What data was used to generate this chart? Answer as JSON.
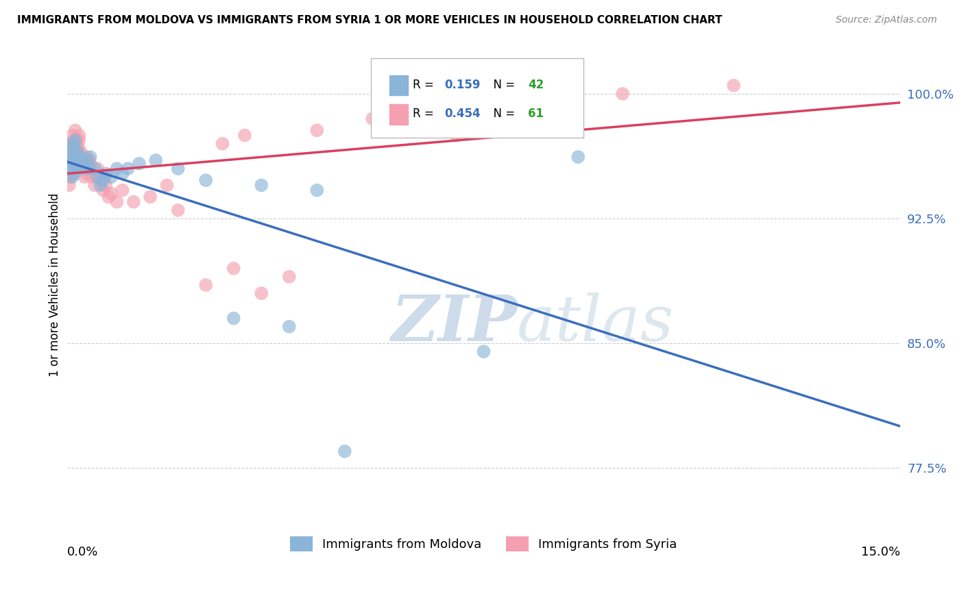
{
  "title": "IMMIGRANTS FROM MOLDOVA VS IMMIGRANTS FROM SYRIA 1 OR MORE VEHICLES IN HOUSEHOLD CORRELATION CHART",
  "source": "Source: ZipAtlas.com",
  "ylabel": "1 or more Vehicles in Household",
  "yticks": [
    77.5,
    85.0,
    92.5,
    100.0
  ],
  "ytick_labels": [
    "77.5%",
    "85.0%",
    "92.5%",
    "100.0%"
  ],
  "xlim": [
    0.0,
    15.0
  ],
  "ylim": [
    74.0,
    103.0
  ],
  "legend_blue_r": "0.159",
  "legend_blue_n": "42",
  "legend_pink_r": "0.454",
  "legend_pink_n": "61",
  "blue_color": "#8ab4d8",
  "pink_color": "#f4a0b0",
  "blue_line_color": "#3a6ebd",
  "pink_line_color": "#d94060",
  "watermark_color": "#dce8f0",
  "moldova_x": [
    0.05,
    0.07,
    0.08,
    0.09,
    0.1,
    0.1,
    0.12,
    0.13,
    0.15,
    0.17,
    0.18,
    0.2,
    0.22,
    0.25,
    0.28,
    0.3,
    0.35,
    0.4,
    0.42,
    0.5,
    0.55,
    0.6,
    0.65,
    0.7,
    0.8,
    0.9,
    1.0,
    1.1,
    1.3,
    1.6,
    2.0,
    2.5,
    3.0,
    3.5,
    4.0,
    4.5,
    5.0,
    7.5,
    9.2,
    0.06,
    0.11,
    0.15
  ],
  "moldova_y": [
    95.8,
    96.2,
    96.5,
    95.5,
    97.0,
    95.0,
    96.8,
    95.2,
    97.2,
    96.0,
    95.5,
    96.5,
    95.8,
    96.2,
    95.5,
    95.8,
    96.0,
    95.5,
    96.2,
    95.5,
    95.0,
    94.5,
    94.8,
    95.2,
    95.0,
    95.5,
    95.2,
    95.5,
    95.8,
    96.0,
    95.5,
    94.8,
    86.5,
    94.5,
    86.0,
    94.2,
    78.5,
    84.5,
    96.2,
    95.5,
    96.0,
    95.8
  ],
  "syria_x": [
    0.04,
    0.06,
    0.07,
    0.08,
    0.09,
    0.1,
    0.1,
    0.12,
    0.13,
    0.15,
    0.16,
    0.18,
    0.2,
    0.22,
    0.25,
    0.28,
    0.3,
    0.32,
    0.35,
    0.38,
    0.4,
    0.42,
    0.45,
    0.5,
    0.55,
    0.6,
    0.65,
    0.7,
    0.75,
    0.8,
    0.9,
    1.0,
    1.2,
    1.5,
    1.8,
    2.0,
    2.5,
    3.0,
    3.5,
    4.0,
    0.08,
    0.12,
    0.15,
    0.18,
    0.22,
    0.28,
    0.35,
    0.42,
    0.55,
    0.68,
    2.8,
    3.2,
    4.5,
    5.5,
    6.5,
    7.0,
    8.0,
    9.0,
    10.0,
    12.0,
    0.25
  ],
  "syria_y": [
    94.5,
    95.0,
    96.2,
    97.0,
    96.8,
    96.5,
    97.5,
    97.2,
    96.0,
    97.8,
    97.0,
    96.5,
    96.8,
    97.2,
    96.5,
    95.8,
    95.5,
    95.0,
    95.2,
    95.8,
    96.0,
    95.5,
    95.0,
    94.5,
    95.0,
    94.8,
    94.2,
    94.5,
    93.8,
    94.0,
    93.5,
    94.2,
    93.5,
    93.8,
    94.5,
    93.0,
    88.5,
    89.5,
    88.0,
    89.0,
    96.5,
    97.0,
    96.5,
    97.2,
    97.5,
    96.0,
    96.2,
    95.8,
    95.5,
    95.0,
    97.0,
    97.5,
    97.8,
    98.5,
    98.0,
    97.5,
    99.5,
    100.2,
    100.0,
    100.5,
    96.0
  ]
}
